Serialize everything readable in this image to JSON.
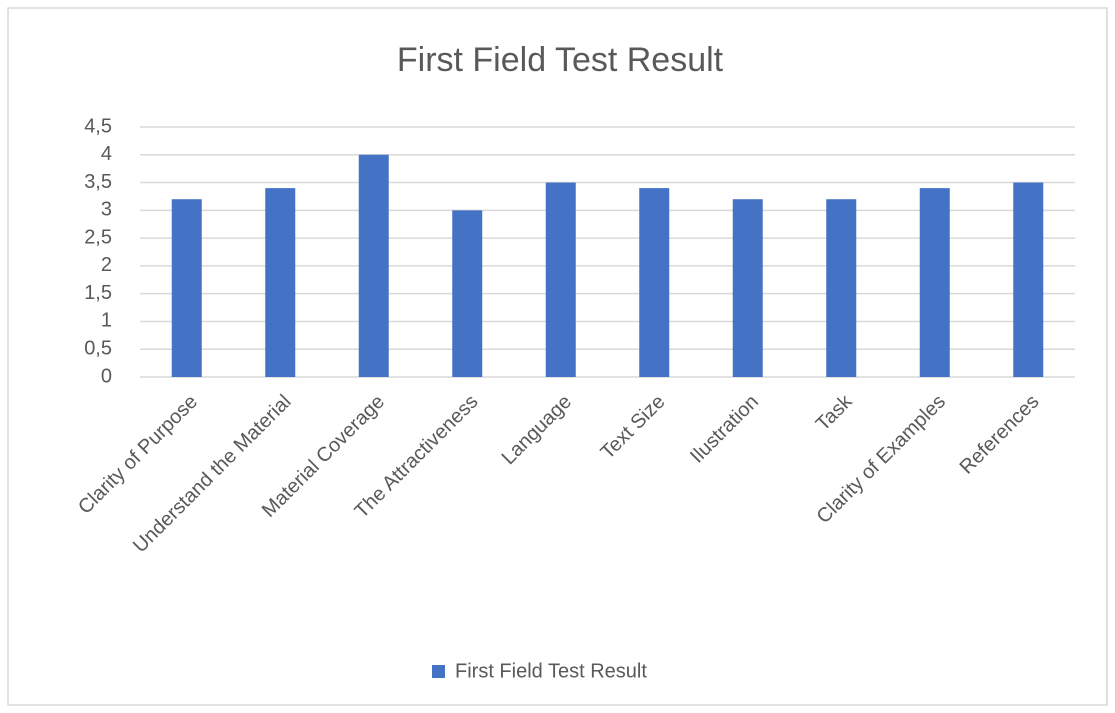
{
  "chart_data": {
    "type": "bar",
    "title": "First Field Test Result",
    "categories": [
      "Clarity of Purpose",
      "Understand the Material",
      "Material Coverage",
      "The Attractiveness",
      "Language",
      "Text Size",
      "Ilustration",
      "Task",
      "Clarity of Examples",
      "References"
    ],
    "series": [
      {
        "name": "First Field Test Result",
        "color": "#4472c4",
        "values": [
          3.2,
          3.4,
          4,
          3,
          3.5,
          3.4,
          3.2,
          3.2,
          3.4,
          3.5
        ]
      }
    ],
    "ylim": [
      0,
      4.5
    ],
    "yticks": [
      0,
      {
        "value": 0.5,
        "label": "0,5"
      },
      1,
      {
        "value": 1.5,
        "label": "1,5"
      },
      2,
      {
        "value": 2.5,
        "label": "2,5"
      },
      3,
      {
        "value": 3.5,
        "label": "3,5"
      },
      4,
      {
        "value": 4.5,
        "label": "4,5"
      }
    ],
    "grid": true,
    "legend": "bottom"
  }
}
